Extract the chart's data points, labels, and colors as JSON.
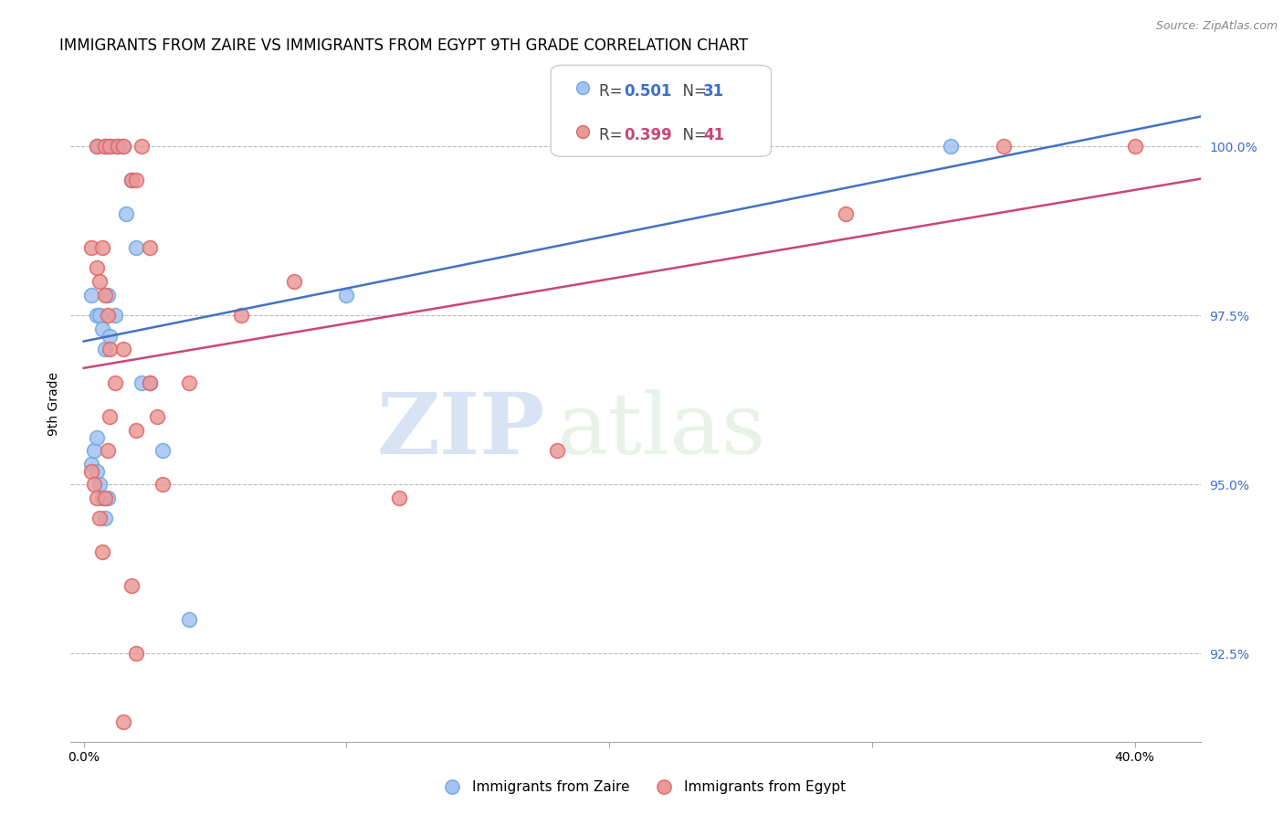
{
  "title": "IMMIGRANTS FROM ZAIRE VS IMMIGRANTS FROM EGYPT 9TH GRADE CORRELATION CHART",
  "source": "Source: ZipAtlas.com",
  "ylabel": "9th Grade",
  "yticks": [
    92.5,
    95.0,
    97.5,
    100.0
  ],
  "ytick_labels": [
    "92.5%",
    "95.0%",
    "97.5%",
    "100.0%"
  ],
  "ymin": 91.2,
  "ymax": 101.2,
  "xmin": -0.005,
  "xmax": 0.425,
  "zaire_R": 0.501,
  "zaire_N": 31,
  "egypt_R": 0.399,
  "egypt_N": 41,
  "zaire_color": "#a4c2f4",
  "egypt_color": "#ea9999",
  "zaire_edge_color": "#6fa8dc",
  "egypt_edge_color": "#e06666",
  "zaire_line_color": "#4472c4",
  "egypt_line_color": "#c9467a",
  "zaire_x": [
    0.005,
    0.008,
    0.01,
    0.012,
    0.013,
    0.015,
    0.016,
    0.018,
    0.02,
    0.003,
    0.005,
    0.006,
    0.007,
    0.008,
    0.009,
    0.01,
    0.012,
    0.003,
    0.004,
    0.005,
    0.005,
    0.006,
    0.007,
    0.008,
    0.009,
    0.022,
    0.025,
    0.03,
    0.1,
    0.33,
    0.04
  ],
  "zaire_y": [
    100.0,
    100.0,
    100.0,
    100.0,
    100.0,
    100.0,
    99.0,
    99.5,
    98.5,
    97.8,
    97.5,
    97.5,
    97.3,
    97.0,
    97.8,
    97.2,
    97.5,
    95.3,
    95.5,
    95.2,
    95.7,
    95.0,
    94.8,
    94.5,
    94.8,
    96.5,
    96.5,
    95.5,
    97.8,
    100.0,
    93.0
  ],
  "egypt_x": [
    0.005,
    0.008,
    0.01,
    0.013,
    0.015,
    0.018,
    0.02,
    0.022,
    0.025,
    0.003,
    0.005,
    0.006,
    0.007,
    0.008,
    0.009,
    0.01,
    0.012,
    0.015,
    0.003,
    0.004,
    0.005,
    0.006,
    0.007,
    0.008,
    0.009,
    0.01,
    0.02,
    0.025,
    0.028,
    0.03,
    0.04,
    0.06,
    0.08,
    0.12,
    0.18,
    0.29,
    0.35,
    0.4,
    0.015,
    0.018,
    0.02
  ],
  "egypt_y": [
    100.0,
    100.0,
    100.0,
    100.0,
    100.0,
    99.5,
    99.5,
    100.0,
    98.5,
    98.5,
    98.2,
    98.0,
    98.5,
    97.8,
    97.5,
    97.0,
    96.5,
    97.0,
    95.2,
    95.0,
    94.8,
    94.5,
    94.0,
    94.8,
    95.5,
    96.0,
    95.8,
    96.5,
    96.0,
    95.0,
    96.5,
    97.5,
    98.0,
    94.8,
    95.5,
    99.0,
    100.0,
    100.0,
    91.5,
    93.5,
    92.5
  ],
  "watermark_zip": "ZIP",
  "watermark_atlas": "atlas",
  "title_fontsize": 12,
  "axis_label_fontsize": 10,
  "tick_fontsize": 10,
  "legend_fontsize": 13,
  "source_fontsize": 9
}
